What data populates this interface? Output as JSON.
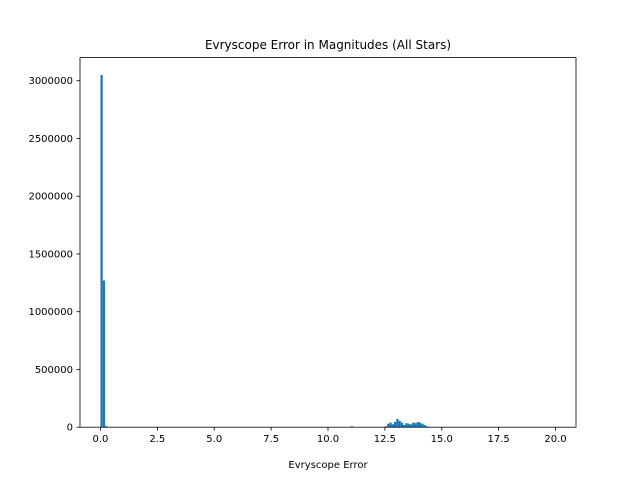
{
  "chart_data": {
    "type": "bar",
    "title": "Evryscope Error in Magnitudes (All Stars)",
    "xlabel": "Evryscope Error",
    "ylabel": "",
    "xlim": [
      -0.9,
      20.9
    ],
    "ylim": [
      0,
      3200000
    ],
    "xticks": [
      0.0,
      2.5,
      5.0,
      7.5,
      10.0,
      12.5,
      15.0,
      17.5,
      20.0
    ],
    "xtick_labels": [
      "0.0",
      "2.5",
      "5.0",
      "7.5",
      "10.0",
      "12.5",
      "15.0",
      "17.5",
      "20.0"
    ],
    "yticks": [
      0,
      500000,
      1000000,
      1500000,
      2000000,
      2500000,
      3000000
    ],
    "ytick_labels": [
      "0",
      "500000",
      "1000000",
      "1500000",
      "2000000",
      "2500000",
      "3000000"
    ],
    "bin_width": 0.1,
    "bins": [
      {
        "x": 0.0,
        "value": 3050000
      },
      {
        "x": 0.1,
        "value": 1270000
      },
      {
        "x": 0.2,
        "value": 10000
      },
      {
        "x": 11.0,
        "value": 8000
      },
      {
        "x": 12.5,
        "value": 8000
      },
      {
        "x": 12.6,
        "value": 30000
      },
      {
        "x": 12.7,
        "value": 40000
      },
      {
        "x": 12.8,
        "value": 25000
      },
      {
        "x": 12.9,
        "value": 45000
      },
      {
        "x": 13.0,
        "value": 72000
      },
      {
        "x": 13.1,
        "value": 55000
      },
      {
        "x": 13.2,
        "value": 40000
      },
      {
        "x": 13.3,
        "value": 20000
      },
      {
        "x": 13.4,
        "value": 35000
      },
      {
        "x": 13.5,
        "value": 30000
      },
      {
        "x": 13.6,
        "value": 25000
      },
      {
        "x": 13.7,
        "value": 40000
      },
      {
        "x": 13.8,
        "value": 35000
      },
      {
        "x": 13.9,
        "value": 45000
      },
      {
        "x": 14.0,
        "value": 40000
      },
      {
        "x": 14.1,
        "value": 30000
      },
      {
        "x": 14.2,
        "value": 18000
      },
      {
        "x": 14.3,
        "value": 8000
      }
    ],
    "bar_color": "#1f77b4",
    "grid": false
  }
}
